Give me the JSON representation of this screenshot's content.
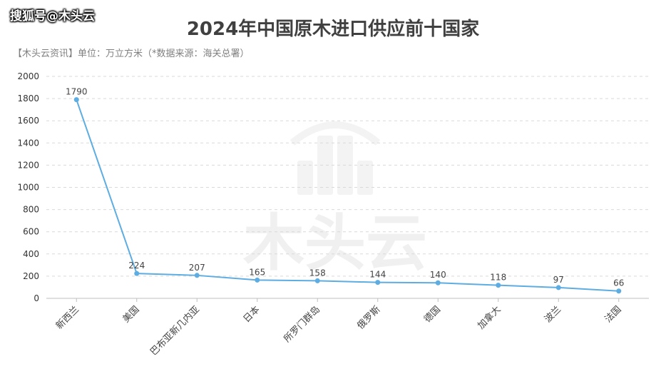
{
  "watermark": {
    "source": "搜狐号@木头云",
    "brand": "木头云"
  },
  "chart_data": {
    "type": "line",
    "title": "2024年中国原木进口供应前十国家",
    "subtitle": "【木头云资讯】单位：万立方米（*数据来源：海关总署）",
    "categories": [
      "新西兰",
      "美国",
      "巴布亚新几内亚",
      "日本",
      "所罗门群岛",
      "俄罗斯",
      "德国",
      "加拿大",
      "波兰",
      "法国"
    ],
    "series": [
      {
        "values": [
          1790,
          224,
          207,
          165,
          158,
          144,
          140,
          118,
          97,
          66
        ]
      }
    ],
    "yticks": [
      0,
      200,
      400,
      600,
      800,
      1000,
      1200,
      1400,
      1600,
      1800,
      2000
    ],
    "ylim": [
      0,
      2000
    ],
    "grid": true,
    "line_color": "#5dade2"
  }
}
